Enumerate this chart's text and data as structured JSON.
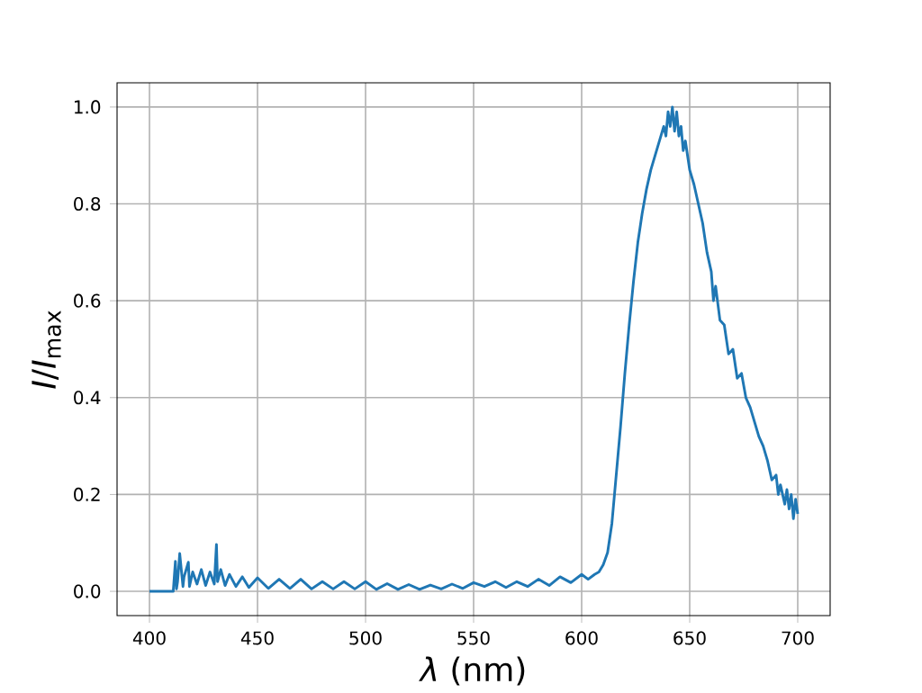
{
  "chart_data": {
    "type": "line",
    "xlabel": "*λ* (nm)",
    "ylabel": "*I*/*I*$_{max}$",
    "x": [
      400,
      411,
      412,
      412.5,
      413,
      414,
      415.5,
      416,
      418,
      418.5,
      420,
      422,
      424,
      426,
      428,
      430,
      431,
      431.5,
      433,
      435,
      437,
      440,
      443,
      446,
      450,
      455,
      460,
      465,
      470,
      475,
      480,
      485,
      490,
      495,
      500,
      505,
      510,
      515,
      520,
      525,
      530,
      535,
      540,
      545,
      550,
      555,
      560,
      565,
      570,
      575,
      580,
      585,
      590,
      595,
      600,
      603,
      606,
      608,
      610,
      612,
      614,
      616,
      618,
      620,
      622,
      624,
      626,
      628,
      630,
      632,
      634,
      636,
      638,
      639,
      640,
      641,
      642,
      643,
      644,
      645,
      646,
      647,
      648,
      650,
      652,
      654,
      656,
      658,
      660,
      661,
      662,
      664,
      666,
      668,
      670,
      672,
      674,
      676,
      678,
      680,
      682,
      684,
      686,
      688,
      690,
      691,
      692,
      694,
      695,
      696,
      697,
      698,
      699,
      700
    ],
    "values": [
      0,
      0,
      0.062,
      0.005,
      0.02,
      0.078,
      0.01,
      0.03,
      0.06,
      0.01,
      0.04,
      0.015,
      0.045,
      0.012,
      0.04,
      0.015,
      0.097,
      0.02,
      0.045,
      0.012,
      0.035,
      0.01,
      0.03,
      0.008,
      0.028,
      0.006,
      0.025,
      0.006,
      0.025,
      0.005,
      0.02,
      0.005,
      0.02,
      0.005,
      0.02,
      0.004,
      0.016,
      0.004,
      0.014,
      0.004,
      0.013,
      0.005,
      0.015,
      0.006,
      0.018,
      0.01,
      0.02,
      0.008,
      0.02,
      0.01,
      0.025,
      0.012,
      0.03,
      0.018,
      0.035,
      0.025,
      0.035,
      0.04,
      0.055,
      0.08,
      0.14,
      0.24,
      0.34,
      0.45,
      0.55,
      0.64,
      0.72,
      0.78,
      0.83,
      0.87,
      0.9,
      0.93,
      0.96,
      0.94,
      0.99,
      0.96,
      1.0,
      0.95,
      0.99,
      0.94,
      0.96,
      0.91,
      0.93,
      0.87,
      0.84,
      0.8,
      0.76,
      0.7,
      0.66,
      0.6,
      0.63,
      0.56,
      0.55,
      0.49,
      0.5,
      0.44,
      0.45,
      0.4,
      0.38,
      0.35,
      0.32,
      0.3,
      0.27,
      0.23,
      0.24,
      0.2,
      0.22,
      0.18,
      0.21,
      0.17,
      0.2,
      0.15,
      0.19,
      0.16
    ],
    "color": "#1f77b4",
    "line_style": "solid",
    "xlim": [
      385,
      715
    ],
    "ylim": [
      -0.05,
      1.05
    ],
    "xticks": [
      400,
      450,
      500,
      550,
      600,
      650,
      700
    ],
    "yticks": [
      {
        "value": 0,
        "label": "0.0"
      },
      {
        "value": 0.2,
        "label": "0.2"
      },
      {
        "value": 0.4,
        "label": "0.4"
      },
      {
        "value": 0.6,
        "label": "0.6"
      },
      {
        "value": 0.8,
        "label": "0.8"
      },
      {
        "value": 1.0,
        "label": "1.0"
      }
    ],
    "grid": true
  }
}
